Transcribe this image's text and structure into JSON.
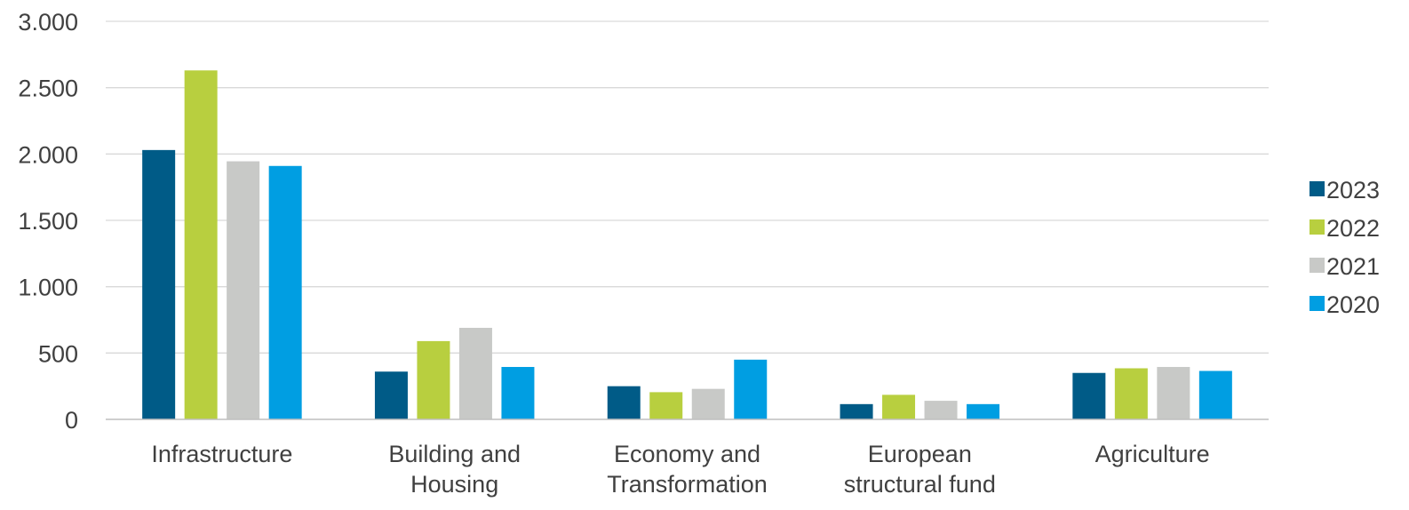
{
  "chart_data": {
    "type": "bar",
    "title": "",
    "xlabel": "",
    "ylabel": "",
    "ylim": [
      0,
      3000
    ],
    "yticks": [
      0,
      500,
      1000,
      1500,
      2000,
      2500,
      3000
    ],
    "ytick_labels": [
      "0",
      "500",
      "1.000",
      "1.500",
      "2.000",
      "2.500",
      "3.000"
    ],
    "grid": true,
    "legend_position": "right",
    "categories": [
      [
        "Infrastructure"
      ],
      [
        "Building and",
        "Housing"
      ],
      [
        "Economy and",
        "Transformation"
      ],
      [
        "European",
        "structural fund"
      ],
      [
        "Agriculture"
      ]
    ],
    "series": [
      {
        "name": "2023",
        "color": "#005b87",
        "values": [
          2030,
          360,
          250,
          115,
          350
        ]
      },
      {
        "name": "2022",
        "color": "#b8cf3f",
        "values": [
          2630,
          590,
          205,
          185,
          385
        ]
      },
      {
        "name": "2021",
        "color": "#c8c9c7",
        "values": [
          1945,
          690,
          230,
          140,
          395
        ]
      },
      {
        "name": "2020",
        "color": "#009ee2",
        "values": [
          1910,
          395,
          450,
          115,
          365
        ]
      }
    ],
    "gridline_color": "#d9d9d9",
    "axis_color": "#bfbfbf",
    "text_color": "#404040"
  }
}
